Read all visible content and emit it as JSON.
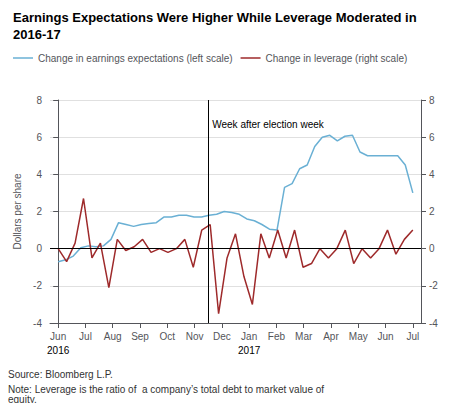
{
  "chart_data": {
    "type": "line",
    "title": "Earnings Expectations Were Higher While Leverage Moderated in 2016-17",
    "ylabel": "Dollars per share",
    "source": "Source: Bloomberg L.P.",
    "note": "Note: Leverage is the ratio of  a company’s total debt to market value of equity.",
    "legend": "top",
    "grid": true,
    "xlim": [
      -0.3,
      13.3
    ],
    "xticks": [
      {
        "value": 0,
        "label": "Jun"
      },
      {
        "value": 1,
        "label": "Jul"
      },
      {
        "value": 2,
        "label": "Aug"
      },
      {
        "value": 3,
        "label": "Sep"
      },
      {
        "value": 4,
        "label": "Oct"
      },
      {
        "value": 5,
        "label": "Nov"
      },
      {
        "value": 6,
        "label": "Dec"
      },
      {
        "value": 7,
        "label": "Jan"
      },
      {
        "value": 8,
        "label": "Feb"
      },
      {
        "value": 9,
        "label": "Mar"
      },
      {
        "value": 10,
        "label": "Apr"
      },
      {
        "value": 11,
        "label": "May"
      },
      {
        "value": 12,
        "label": "Jun"
      },
      {
        "value": 13,
        "label": "Jul"
      }
    ],
    "ylim": [
      -4,
      8
    ],
    "yticks": [
      -4,
      -2,
      0,
      2,
      4,
      6,
      8
    ],
    "y2lim": [
      -4,
      8
    ],
    "y2ticks": [
      -4,
      -2,
      0,
      2,
      4,
      6,
      8
    ],
    "year_labels": [
      {
        "x": 0,
        "label": "2016"
      },
      {
        "x": 7,
        "label": "2017"
      }
    ],
    "annotations": [
      {
        "text": "Week after election week",
        "x": 5.5,
        "y": 6.7
      }
    ],
    "reference_lines": {
      "x": [
        5.5
      ],
      "y": [
        0
      ]
    },
    "series": [
      {
        "name": "Change in earnings expectations (left scale)",
        "color": "#6ab0d4",
        "x": [
          0,
          0.2766,
          0.5532,
          0.8298,
          1.1064,
          1.383,
          1.6596,
          1.9362,
          2.2128,
          2.4894,
          2.766,
          3.0426,
          3.3191,
          3.5957,
          3.8723,
          4.1489,
          4.4255,
          4.7021,
          4.9787,
          5.2553,
          5.5319,
          5.8085,
          6.0851,
          6.3617,
          6.6383,
          6.9149,
          7.1915,
          7.4681,
          7.7447,
          8.0213,
          8.2979,
          8.5745,
          8.8511,
          9.1277,
          9.4043,
          9.6809,
          9.9574,
          10.234,
          10.5106,
          10.7872,
          11.0638,
          11.3404,
          11.617,
          11.8936,
          12.1702,
          12.4468,
          12.7234,
          13
        ],
        "values": [
          -0.7,
          -0.6,
          -0.4,
          0.05,
          0.15,
          0.1,
          0.15,
          0.5,
          1.4,
          1.3,
          1.2,
          1.3,
          1.35,
          1.4,
          1.7,
          1.7,
          1.8,
          1.8,
          1.7,
          1.7,
          1.8,
          1.85,
          2.0,
          1.95,
          1.85,
          1.6,
          1.5,
          1.3,
          1.05,
          1.0,
          3.3,
          3.5,
          4.3,
          4.5,
          5.5,
          6.0,
          6.1,
          5.8,
          6.05,
          6.1,
          5.2,
          5.0,
          5.0,
          5.0,
          5.0,
          5.0,
          4.5,
          3.0
        ]
      },
      {
        "name": "Change in leverage (right scale)",
        "color": "#9e2a2b",
        "axis": "y2",
        "x": [
          0,
          0.3095,
          0.619,
          0.9286,
          1.2381,
          1.5476,
          1.8571,
          2.1667,
          2.4762,
          2.7857,
          3.0952,
          3.4048,
          3.7143,
          4.0238,
          4.3333,
          4.6429,
          4.9524,
          5.2619,
          5.5714,
          5.881,
          6.1905,
          6.5,
          6.8095,
          7.119,
          7.4286,
          7.7381,
          8.0476,
          8.3571,
          8.6667,
          8.9762,
          9.2857,
          9.5952,
          9.9048,
          10.2143,
          10.5238,
          10.8333,
          11.1429,
          11.4524,
          11.7619,
          12.0714,
          12.381,
          12.6905,
          13
        ],
        "values": [
          0.0,
          -0.7,
          0.3,
          2.7,
          -0.5,
          0.3,
          -2.1,
          0.5,
          -0.1,
          0.1,
          0.5,
          -0.2,
          0.0,
          -0.2,
          0.0,
          0.5,
          -1.0,
          1.0,
          1.3,
          -3.5,
          -0.5,
          0.8,
          -1.5,
          -3.0,
          0.8,
          -0.5,
          1.0,
          -0.5,
          1.0,
          -1.0,
          -0.8,
          0.0,
          -0.5,
          0.0,
          1.0,
          -0.8,
          0.0,
          -0.5,
          0.0,
          1.0,
          -0.3,
          0.5,
          1.0
        ]
      }
    ]
  }
}
